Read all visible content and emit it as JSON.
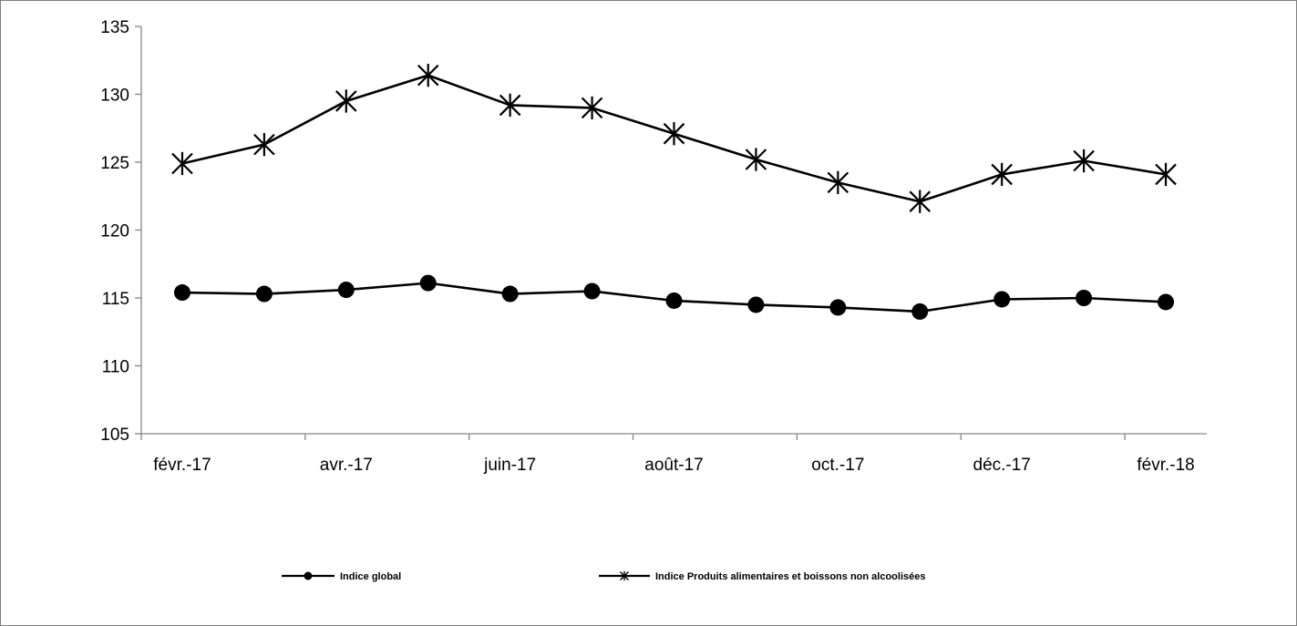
{
  "chart_data": {
    "type": "line",
    "y_ticks": [
      "105",
      "110",
      "115",
      "120",
      "125",
      "130",
      "135"
    ],
    "ylim": [
      105,
      135
    ],
    "x_tick_labels": [
      "févr.-17",
      "avr.-17",
      "juin-17",
      "août-17",
      "oct.-17",
      "déc.-17",
      "févr.-18"
    ],
    "x": [
      "févr.-17",
      "mars-17",
      "avr.-17",
      "mai-17",
      "juin-17",
      "juil.-17",
      "août-17",
      "sept.-17",
      "oct.-17",
      "nov.-17",
      "déc.-17",
      "janv.-18",
      "févr.-18"
    ],
    "grid": false,
    "legend_position": "bottom",
    "series": [
      {
        "name": "Indice global",
        "marker": "circle",
        "color": "#000000",
        "values": [
          115.4,
          115.3,
          115.6,
          116.1,
          115.3,
          115.5,
          114.8,
          114.5,
          114.3,
          114.0,
          114.9,
          115.0,
          114.7
        ]
      },
      {
        "name": "Indice Produits alimentaires et boissons non alcoolisées",
        "marker": "star",
        "color": "#000000",
        "values": [
          124.9,
          126.3,
          129.5,
          131.4,
          129.2,
          129.0,
          127.1,
          125.2,
          123.5,
          122.1,
          124.1,
          125.1,
          124.1
        ]
      }
    ]
  }
}
